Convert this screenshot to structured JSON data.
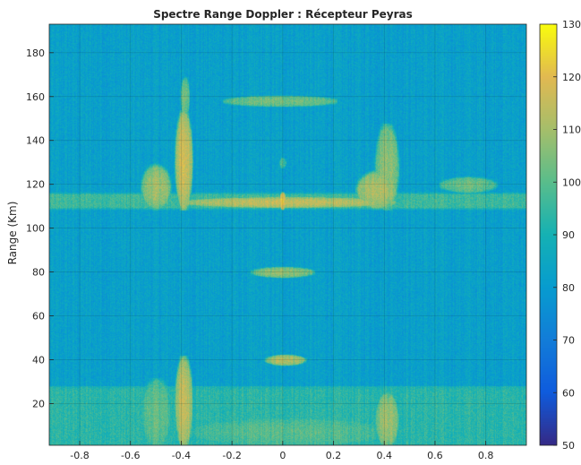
{
  "chart_data": {
    "type": "heatmap",
    "title": "Spectre Range Doppler : Récepteur Peyras",
    "xlabel": "",
    "ylabel": "Range (Km)",
    "xlim": [
      -0.92,
      0.96
    ],
    "ylim": [
      1,
      193
    ],
    "x_ticks": [
      -0.8,
      -0.6,
      -0.4,
      -0.2,
      0,
      0.2,
      0.4,
      0.6,
      0.8
    ],
    "x_tick_labels": [
      "-0.8",
      "-0.6",
      "-0.4",
      "-0.2",
      "0",
      "0.2",
      "0.4",
      "0.6",
      "0.8"
    ],
    "y_ticks": [
      20,
      40,
      60,
      80,
      100,
      120,
      140,
      160,
      180
    ],
    "y_tick_labels": [
      "20",
      "40",
      "60",
      "80",
      "100",
      "120",
      "140",
      "160",
      "180"
    ],
    "grid": true,
    "colormap": "parula",
    "colorbar": {
      "range": [
        50,
        130
      ],
      "ticks": [
        50,
        60,
        70,
        80,
        90,
        100,
        110,
        120,
        130
      ],
      "tick_labels": [
        "50",
        "60",
        "70",
        "80",
        "90",
        "100",
        "110",
        "120",
        "130"
      ]
    },
    "background_level": 82,
    "features": [
      {
        "kind": "band",
        "x": [
          -0.92,
          0.96
        ],
        "y": [
          110,
          115
        ],
        "level": 96
      },
      {
        "kind": "blob",
        "x": [
          -0.39,
          0.43
        ],
        "y": [
          110,
          114
        ],
        "level": 115
      },
      {
        "kind": "blob",
        "x": [
          -0.55,
          -0.45
        ],
        "y": [
          110,
          128
        ],
        "level": 110
      },
      {
        "kind": "blob",
        "x": [
          -0.42,
          -0.36
        ],
        "y": [
          110,
          152
        ],
        "level": 117
      },
      {
        "kind": "blob",
        "x": [
          -0.4,
          -0.37
        ],
        "y": [
          152,
          168
        ],
        "level": 104
      },
      {
        "kind": "blob",
        "x": [
          0.3,
          0.44
        ],
        "y": [
          110,
          125
        ],
        "level": 113
      },
      {
        "kind": "blob",
        "x": [
          0.37,
          0.45
        ],
        "y": [
          110,
          146
        ],
        "level": 108
      },
      {
        "kind": "blob",
        "x": [
          -0.01,
          0.01
        ],
        "y": [
          109,
          116
        ],
        "level": 122
      },
      {
        "kind": "blob",
        "x": [
          -0.01,
          0.01
        ],
        "y": [
          128,
          132
        ],
        "level": 98
      },
      {
        "kind": "blob",
        "x": [
          -0.22,
          0.2
        ],
        "y": [
          156,
          160
        ],
        "level": 104
      },
      {
        "kind": "blob",
        "x": [
          0.63,
          0.83
        ],
        "y": [
          117,
          123
        ],
        "level": 103
      },
      {
        "kind": "blob",
        "x": [
          -0.11,
          0.11
        ],
        "y": [
          78,
          82
        ],
        "level": 108
      },
      {
        "kind": "blob",
        "x": [
          -0.06,
          0.08
        ],
        "y": [
          38,
          42
        ],
        "level": 113
      },
      {
        "kind": "band",
        "x": [
          -0.92,
          0.96
        ],
        "y": [
          1,
          26
        ],
        "level": 93
      },
      {
        "kind": "blob",
        "x": [
          -0.55,
          -0.45
        ],
        "y": [
          1,
          30
        ],
        "level": 102
      },
      {
        "kind": "blob",
        "x": [
          -0.42,
          -0.36
        ],
        "y": [
          1,
          40
        ],
        "level": 115
      },
      {
        "kind": "blob",
        "x": [
          0.37,
          0.45
        ],
        "y": [
          1,
          24
        ],
        "level": 110
      },
      {
        "kind": "blob",
        "x": [
          -0.35,
          0.4
        ],
        "y": [
          1,
          13
        ],
        "level": 100
      }
    ]
  }
}
